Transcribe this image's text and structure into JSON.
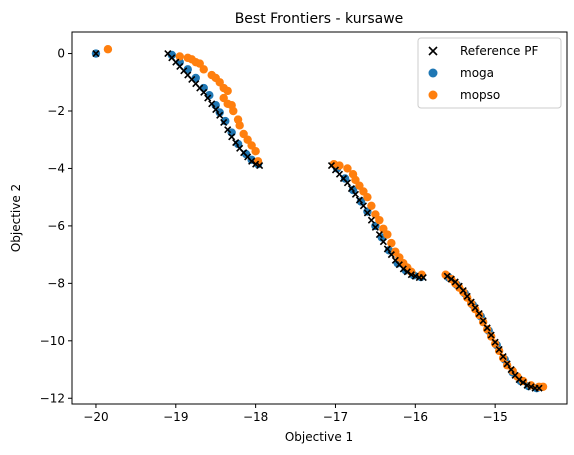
{
  "chart_data": {
    "type": "scatter",
    "title": "Best Frontiers - kursawe",
    "xlabel": "Objective 1",
    "ylabel": "Objective 2",
    "xlim": [
      -20.3,
      -14.1
    ],
    "ylim": [
      -12.2,
      0.75
    ],
    "xticks": [
      -20,
      -19,
      -18,
      -17,
      -16,
      -15
    ],
    "yticks": [
      0,
      -2,
      -4,
      -6,
      -8,
      -10,
      -12
    ],
    "grid": false,
    "legend_position": "top-right",
    "series": [
      {
        "name": "Reference PF",
        "marker": "x",
        "color": "#000000",
        "points": [
          [
            -20.0,
            0.0
          ],
          [
            -19.1,
            0.0
          ],
          [
            -19.05,
            -0.15
          ],
          [
            -19.0,
            -0.3
          ],
          [
            -18.95,
            -0.45
          ],
          [
            -18.9,
            -0.6
          ],
          [
            -18.85,
            -0.75
          ],
          [
            -18.8,
            -0.9
          ],
          [
            -18.75,
            -1.05
          ],
          [
            -18.7,
            -1.2
          ],
          [
            -18.65,
            -1.35
          ],
          [
            -18.6,
            -1.55
          ],
          [
            -18.55,
            -1.75
          ],
          [
            -18.5,
            -1.95
          ],
          [
            -18.45,
            -2.15
          ],
          [
            -18.4,
            -2.4
          ],
          [
            -18.35,
            -2.65
          ],
          [
            -18.3,
            -2.9
          ],
          [
            -18.25,
            -3.1
          ],
          [
            -18.2,
            -3.3
          ],
          [
            -18.15,
            -3.45
          ],
          [
            -18.1,
            -3.6
          ],
          [
            -18.05,
            -3.75
          ],
          [
            -18.0,
            -3.85
          ],
          [
            -17.95,
            -3.9
          ],
          [
            -17.05,
            -3.9
          ],
          [
            -17.0,
            -4.05
          ],
          [
            -16.95,
            -4.2
          ],
          [
            -16.9,
            -4.35
          ],
          [
            -16.85,
            -4.5
          ],
          [
            -16.8,
            -4.7
          ],
          [
            -16.75,
            -4.9
          ],
          [
            -16.7,
            -5.1
          ],
          [
            -16.65,
            -5.3
          ],
          [
            -16.6,
            -5.55
          ],
          [
            -16.55,
            -5.8
          ],
          [
            -16.5,
            -6.05
          ],
          [
            -16.45,
            -6.3
          ],
          [
            -16.4,
            -6.55
          ],
          [
            -16.35,
            -6.8
          ],
          [
            -16.3,
            -7.0
          ],
          [
            -16.25,
            -7.2
          ],
          [
            -16.2,
            -7.35
          ],
          [
            -16.15,
            -7.5
          ],
          [
            -16.1,
            -7.6
          ],
          [
            -16.05,
            -7.7
          ],
          [
            -16.0,
            -7.75
          ],
          [
            -15.95,
            -7.8
          ],
          [
            -15.9,
            -7.8
          ],
          [
            -15.6,
            -7.75
          ],
          [
            -15.55,
            -7.85
          ],
          [
            -15.5,
            -7.95
          ],
          [
            -15.45,
            -8.1
          ],
          [
            -15.4,
            -8.25
          ],
          [
            -15.35,
            -8.45
          ],
          [
            -15.3,
            -8.65
          ],
          [
            -15.25,
            -8.85
          ],
          [
            -15.2,
            -9.05
          ],
          [
            -15.15,
            -9.3
          ],
          [
            -15.1,
            -9.55
          ],
          [
            -15.05,
            -9.8
          ],
          [
            -15.0,
            -10.05
          ],
          [
            -14.95,
            -10.3
          ],
          [
            -14.9,
            -10.55
          ],
          [
            -14.85,
            -10.8
          ],
          [
            -14.8,
            -11.0
          ],
          [
            -14.75,
            -11.2
          ],
          [
            -14.7,
            -11.35
          ],
          [
            -14.65,
            -11.45
          ],
          [
            -14.6,
            -11.55
          ],
          [
            -14.55,
            -11.6
          ],
          [
            -14.5,
            -11.65
          ],
          [
            -14.45,
            -11.65
          ]
        ]
      },
      {
        "name": "moga",
        "marker": "o",
        "color": "#1f77b4",
        "points": [
          [
            -20.0,
            0.0
          ],
          [
            -19.05,
            -0.05
          ],
          [
            -18.95,
            -0.3
          ],
          [
            -18.85,
            -0.55
          ],
          [
            -18.75,
            -0.85
          ],
          [
            -18.65,
            -1.2
          ],
          [
            -18.58,
            -1.45
          ],
          [
            -18.5,
            -1.8
          ],
          [
            -18.45,
            -2.05
          ],
          [
            -18.38,
            -2.35
          ],
          [
            -18.3,
            -2.75
          ],
          [
            -18.22,
            -3.15
          ],
          [
            -18.12,
            -3.5
          ],
          [
            -18.05,
            -3.7
          ],
          [
            -17.97,
            -3.85
          ],
          [
            -16.98,
            -4.0
          ],
          [
            -16.88,
            -4.35
          ],
          [
            -16.78,
            -4.75
          ],
          [
            -16.68,
            -5.15
          ],
          [
            -16.6,
            -5.5
          ],
          [
            -16.5,
            -6.0
          ],
          [
            -16.42,
            -6.4
          ],
          [
            -16.33,
            -6.85
          ],
          [
            -16.22,
            -7.3
          ],
          [
            -16.12,
            -7.55
          ],
          [
            -16.02,
            -7.72
          ],
          [
            -15.93,
            -7.78
          ],
          [
            -15.58,
            -7.8
          ],
          [
            -15.48,
            -8.05
          ],
          [
            -15.38,
            -8.35
          ],
          [
            -15.28,
            -8.75
          ],
          [
            -15.18,
            -9.15
          ],
          [
            -15.08,
            -9.65
          ],
          [
            -14.98,
            -10.15
          ],
          [
            -14.88,
            -10.65
          ],
          [
            -14.78,
            -11.1
          ],
          [
            -14.68,
            -11.4
          ],
          [
            -14.58,
            -11.58
          ],
          [
            -14.48,
            -11.65
          ]
        ]
      },
      {
        "name": "mopso",
        "marker": "o",
        "color": "#ff7f0e",
        "points": [
          [
            -19.85,
            0.15
          ],
          [
            -18.95,
            -0.1
          ],
          [
            -18.85,
            -0.15
          ],
          [
            -18.8,
            -0.2
          ],
          [
            -18.75,
            -0.3
          ],
          [
            -18.7,
            -0.35
          ],
          [
            -18.65,
            -0.55
          ],
          [
            -18.55,
            -0.75
          ],
          [
            -18.5,
            -0.85
          ],
          [
            -18.45,
            -1.0
          ],
          [
            -18.4,
            -1.2
          ],
          [
            -18.35,
            -1.3
          ],
          [
            -18.4,
            -1.55
          ],
          [
            -18.35,
            -1.75
          ],
          [
            -18.3,
            -1.8
          ],
          [
            -18.28,
            -2.0
          ],
          [
            -18.22,
            -2.3
          ],
          [
            -18.2,
            -2.5
          ],
          [
            -18.15,
            -2.8
          ],
          [
            -18.1,
            -3.0
          ],
          [
            -18.05,
            -3.2
          ],
          [
            -18.0,
            -3.4
          ],
          [
            -17.97,
            -3.75
          ],
          [
            -17.02,
            -3.85
          ],
          [
            -16.95,
            -3.9
          ],
          [
            -16.85,
            -4.0
          ],
          [
            -16.78,
            -4.2
          ],
          [
            -16.75,
            -4.4
          ],
          [
            -16.7,
            -4.6
          ],
          [
            -16.65,
            -4.8
          ],
          [
            -16.6,
            -5.0
          ],
          [
            -16.55,
            -5.3
          ],
          [
            -16.5,
            -5.6
          ],
          [
            -16.45,
            -5.8
          ],
          [
            -16.4,
            -6.1
          ],
          [
            -16.35,
            -6.3
          ],
          [
            -16.3,
            -6.6
          ],
          [
            -16.25,
            -6.9
          ],
          [
            -16.2,
            -7.1
          ],
          [
            -16.15,
            -7.3
          ],
          [
            -16.1,
            -7.45
          ],
          [
            -16.05,
            -7.6
          ],
          [
            -15.92,
            -7.7
          ],
          [
            -15.62,
            -7.7
          ],
          [
            -15.55,
            -7.85
          ],
          [
            -15.5,
            -8.0
          ],
          [
            -15.45,
            -8.15
          ],
          [
            -15.4,
            -8.3
          ],
          [
            -15.35,
            -8.5
          ],
          [
            -15.3,
            -8.7
          ],
          [
            -15.25,
            -8.9
          ],
          [
            -15.2,
            -9.1
          ],
          [
            -15.15,
            -9.35
          ],
          [
            -15.1,
            -9.6
          ],
          [
            -15.05,
            -9.85
          ],
          [
            -15.0,
            -10.1
          ],
          [
            -14.95,
            -10.35
          ],
          [
            -14.9,
            -10.6
          ],
          [
            -14.85,
            -10.85
          ],
          [
            -14.78,
            -11.05
          ],
          [
            -14.72,
            -11.25
          ],
          [
            -14.65,
            -11.4
          ],
          [
            -14.55,
            -11.55
          ],
          [
            -14.45,
            -11.6
          ],
          [
            -14.4,
            -11.6
          ]
        ]
      }
    ]
  }
}
